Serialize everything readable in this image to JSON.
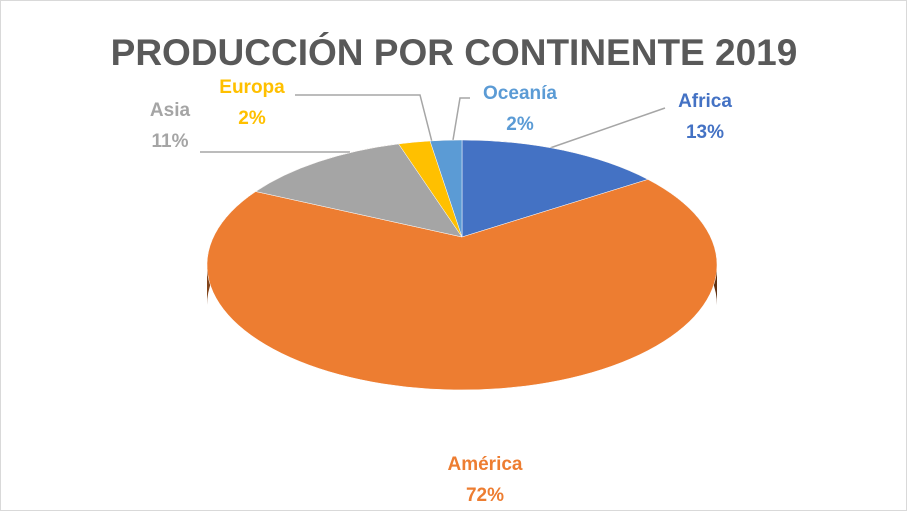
{
  "chart_data": {
    "type": "pie",
    "title": "PRODUCCIÓN POR CONTINENTE 2019",
    "categories": [
      "Africa",
      "América",
      "Asia",
      "Europa",
      "Oceanía"
    ],
    "values": [
      13,
      72,
      11,
      2,
      2
    ],
    "value_labels": [
      "13%",
      "72%",
      "11%",
      "2%",
      "2%"
    ],
    "colors": [
      "#4472c4",
      "#ed7d31",
      "#a5a5a5",
      "#ffc000",
      "#5b9bd5"
    ]
  }
}
